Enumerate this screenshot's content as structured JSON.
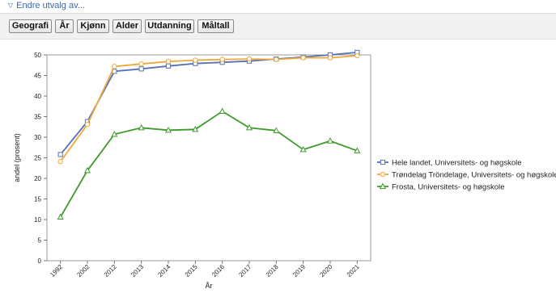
{
  "header": {
    "endre_label": "Endre utvalg av...",
    "buttons": [
      "Geografi",
      "År",
      "Kjønn",
      "Alder",
      "Utdanning",
      "Måltall"
    ]
  },
  "chart_data": {
    "type": "line",
    "xlabel": "År",
    "ylabel": "andel (prosent)",
    "categories": [
      "1992",
      "2002",
      "2012",
      "2013",
      "2014",
      "2015",
      "2016",
      "2017",
      "2018",
      "2019",
      "2020",
      "2021"
    ],
    "ylim": [
      0,
      50
    ],
    "yticks": [
      0,
      5,
      10,
      15,
      20,
      25,
      30,
      35,
      40,
      45,
      50
    ],
    "grid": false,
    "legend_position": "right",
    "series": [
      {
        "name": "Hele landet, Universitets- og høgskole",
        "color": "#5572b5",
        "marker": "square",
        "values": [
          25.8,
          33.8,
          46.0,
          46.6,
          47.3,
          47.9,
          48.2,
          48.5,
          49.0,
          49.5,
          50.0,
          50.6
        ]
      },
      {
        "name": "Trøndelag Tröndelage, Universitets- og høgskole",
        "color": "#eea73a",
        "marker": "circle",
        "values": [
          24.1,
          33.1,
          47.2,
          47.8,
          48.4,
          48.7,
          48.9,
          49.0,
          48.9,
          49.3,
          49.3,
          49.8
        ]
      },
      {
        "name": "Frosta, Universitets- og høgskole",
        "color": "#3e9a2c",
        "marker": "triangle",
        "values": [
          10.6,
          21.9,
          30.7,
          32.3,
          31.7,
          31.9,
          36.3,
          32.3,
          31.6,
          27.0,
          29.1,
          26.7
        ]
      }
    ]
  }
}
